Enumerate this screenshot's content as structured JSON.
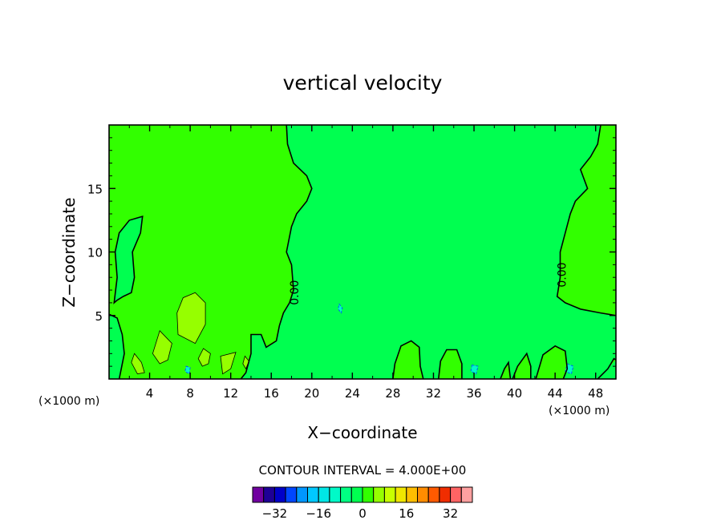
{
  "chart_data": {
    "type": "contour",
    "title": "vertical velocity",
    "xlabel": "X−coordinate",
    "ylabel": "Z−coordinate",
    "x_unit": "(×1000 m)",
    "z_unit": "(×1000 m)",
    "xlim": [
      0,
      50
    ],
    "ylim": [
      0,
      20
    ],
    "x_ticks": [
      4,
      8,
      12,
      16,
      20,
      24,
      28,
      32,
      36,
      40,
      44,
      48
    ],
    "x_tick_labels": [
      "4",
      "8",
      "12",
      "16",
      "20",
      "24",
      "28",
      "32",
      "36",
      "40",
      "44",
      "48"
    ],
    "y_ticks": [
      5,
      10,
      15
    ],
    "y_tick_labels": [
      "5",
      "10",
      "15"
    ],
    "contour_interval_text": "CONTOUR INTERVAL = 4.000E+00",
    "contour_interval": 4.0,
    "contour_labels": [
      "0.00",
      "0.00"
    ],
    "zero_contour_left": [
      [
        17.5,
        20
      ],
      [
        17.6,
        18.5
      ],
      [
        18.2,
        17
      ],
      [
        19.5,
        16
      ],
      [
        20,
        15
      ],
      [
        19.5,
        14
      ],
      [
        18.5,
        13
      ],
      [
        18,
        12
      ],
      [
        17.5,
        10
      ],
      [
        18,
        9
      ],
      [
        18.2,
        7
      ],
      [
        17.8,
        6
      ],
      [
        17.2,
        5.2
      ],
      [
        16.8,
        4.2
      ],
      [
        16.5,
        3
      ],
      [
        15.5,
        2.5
      ],
      [
        15,
        3.5
      ],
      [
        14,
        3.5
      ],
      [
        14,
        2
      ],
      [
        13.5,
        0.5
      ],
      [
        13,
        0
      ]
    ],
    "zero_contour_right": [
      [
        48.5,
        20
      ],
      [
        48.2,
        18.5
      ],
      [
        47.5,
        17.5
      ],
      [
        46.5,
        16.5
      ],
      [
        47.2,
        15
      ],
      [
        46,
        14
      ],
      [
        45.5,
        13
      ],
      [
        45,
        11.5
      ],
      [
        44.5,
        10
      ],
      [
        44.5,
        8
      ],
      [
        44.2,
        6.5
      ],
      [
        45,
        6
      ],
      [
        46.5,
        5.5
      ],
      [
        48.5,
        5.2
      ],
      [
        50,
        5
      ]
    ],
    "colorbar": {
      "colors": [
        "#7000A0",
        "#1E0096",
        "#0000C8",
        "#0046FF",
        "#0096FF",
        "#00C8FF",
        "#00E6E6",
        "#00FAC8",
        "#00FF82",
        "#00FF50",
        "#32FF00",
        "#96FF00",
        "#C8FF00",
        "#F0E600",
        "#FFBE00",
        "#FF8C00",
        "#FF5A00",
        "#F02D00",
        "#FF6464",
        "#FFA0A0"
      ],
      "tick_values": [
        -32,
        -16,
        0,
        16,
        32
      ],
      "tick_labels": [
        "−32",
        "−16",
        "0",
        "16",
        "32"
      ],
      "min": -40,
      "max": 40
    },
    "field_colors": {
      "near_zero_positive": "#32FF00",
      "near_zero_negative": "#00FF50",
      "positive_cell": "#96FF00",
      "negative_cell": "#00FAC8"
    },
    "positive_cells": [
      [
        [
          6.8,
          3.5
        ],
        [
          8.5,
          2.8
        ],
        [
          9.5,
          4.3
        ],
        [
          9.5,
          6.0
        ],
        [
          8.5,
          6.8
        ],
        [
          7.3,
          6.4
        ],
        [
          6.7,
          5.2
        ]
      ],
      [
        [
          2.5,
          2.0
        ],
        [
          3.2,
          1.3
        ],
        [
          3.5,
          0.5
        ],
        [
          2.8,
          0.4
        ],
        [
          2.2,
          1.3
        ]
      ],
      [
        [
          5,
          3.8
        ],
        [
          6.2,
          2.8
        ],
        [
          5.8,
          1.5
        ],
        [
          5.0,
          1.2
        ],
        [
          4.3,
          2.0
        ]
      ],
      [
        [
          9.3,
          2.4
        ],
        [
          10,
          2.0
        ],
        [
          9.8,
          1.2
        ],
        [
          9.2,
          1.0
        ],
        [
          8.8,
          1.6
        ]
      ],
      [
        [
          11.0,
          1.8
        ],
        [
          12.5,
          2.1
        ],
        [
          12.0,
          0.8
        ],
        [
          11.2,
          0.4
        ]
      ],
      [
        [
          13.2,
          1.2
        ],
        [
          13.4,
          1.8
        ],
        [
          13.8,
          1.4
        ],
        [
          13.5,
          0.8
        ]
      ]
    ],
    "negative_cells": [
      [
        [
          22.7,
          5.9
        ],
        [
          23.0,
          5.6
        ],
        [
          22.9,
          5.2
        ],
        [
          22.6,
          5.5
        ]
      ],
      [
        [
          35.8,
          1.1
        ],
        [
          36.4,
          1.0
        ],
        [
          36.2,
          0.4
        ],
        [
          35.7,
          0.6
        ]
      ],
      [
        [
          45.2,
          1.2
        ],
        [
          45.8,
          1.0
        ],
        [
          45.6,
          0.4
        ],
        [
          45.0,
          0.6
        ]
      ],
      [
        [
          7.6,
          1.0
        ],
        [
          8.0,
          0.9
        ],
        [
          7.9,
          0.4
        ],
        [
          7.5,
          0.6
        ]
      ]
    ],
    "upper_left_contour": [
      [
        0.5,
        6
      ],
      [
        0.8,
        8
      ],
      [
        0.6,
        10
      ],
      [
        1,
        11.5
      ],
      [
        2,
        12.5
      ],
      [
        3.3,
        12.8
      ],
      [
        3.1,
        11.5
      ],
      [
        2.3,
        10
      ],
      [
        2.5,
        8
      ],
      [
        2.2,
        6.8
      ],
      [
        1.4,
        6.5
      ],
      [
        0.8,
        6.2
      ]
    ],
    "hill_contours": [
      [
        [
          28.0,
          0
        ],
        [
          28.2,
          1.2
        ],
        [
          28.8,
          2.6
        ],
        [
          29.8,
          3.0
        ],
        [
          30.6,
          2.5
        ],
        [
          30.7,
          1.0
        ],
        [
          31.0,
          0
        ]
      ],
      [
        [
          32.5,
          0
        ],
        [
          32.7,
          1.4
        ],
        [
          33.3,
          2.3
        ],
        [
          34.3,
          2.3
        ],
        [
          34.8,
          1.2
        ],
        [
          34.8,
          0
        ]
      ],
      [
        [
          38.6,
          0
        ],
        [
          39.0,
          0.8
        ],
        [
          39.4,
          1.3
        ],
        [
          39.6,
          0
        ]
      ],
      [
        [
          39.8,
          0
        ],
        [
          40.3,
          1.0
        ],
        [
          41.2,
          2.0
        ],
        [
          41.6,
          1.0
        ],
        [
          41.6,
          0
        ]
      ],
      [
        [
          42.1,
          0
        ],
        [
          42.8,
          1.9
        ],
        [
          44.0,
          2.6
        ],
        [
          45.0,
          2.2
        ],
        [
          45.2,
          0.8
        ],
        [
          44.8,
          0
        ]
      ],
      [
        [
          48.2,
          0
        ],
        [
          49.2,
          0.8
        ],
        [
          49.8,
          1.6
        ],
        [
          50,
          1.5
        ]
      ]
    ],
    "left_boundary_contour": [
      [
        0,
        5.1
      ],
      [
        0.8,
        4.8
      ],
      [
        1.3,
        3.5
      ],
      [
        1.5,
        2.0
      ],
      [
        1.2,
        0.8
      ],
      [
        1.0,
        0
      ]
    ]
  }
}
